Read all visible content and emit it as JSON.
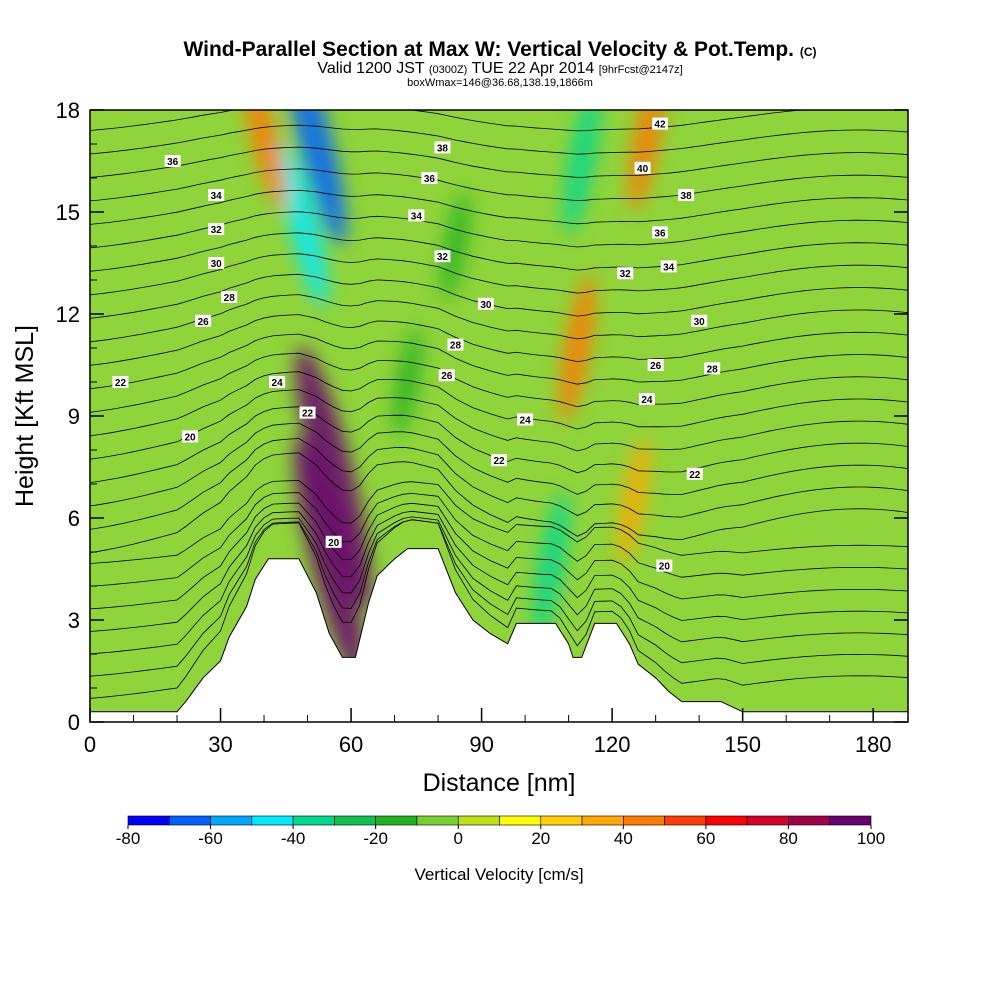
{
  "header": {
    "title": "Wind-Parallel Section at Max W: Vertical Velocity & Pot.Temp.",
    "title_mark": "(C)",
    "valid_prefix": "Valid 1200 JST",
    "valid_zulu": "(0300Z)",
    "valid_date": "TUE 22 Apr 2014",
    "forecast": "[9hrFcst@2147z]",
    "box_info": "boxWmax=146@36.68,138.19,1866m"
  },
  "chart_data": {
    "type": "heatmap",
    "xlabel": "Distance [nm]",
    "ylabel": "Height [Kft MSL]",
    "xlim": [
      0,
      188
    ],
    "ylim": [
      0,
      18
    ],
    "xticks": [
      "0",
      "30",
      "60",
      "90",
      "120",
      "150",
      "180"
    ],
    "yticks": [
      "0",
      "3",
      "6",
      "9",
      "12",
      "15",
      "18"
    ],
    "colorbar": {
      "label": "Vertical Velocity [cm/s]",
      "ticks": [
        "-80",
        "-60",
        "-40",
        "-20",
        "0",
        "20",
        "40",
        "60",
        "80",
        "100"
      ],
      "levels": [
        -80,
        -70,
        -60,
        -50,
        -40,
        -30,
        -20,
        -10,
        0,
        10,
        20,
        30,
        40,
        50,
        60,
        70,
        80,
        90,
        100
      ],
      "colors": [
        "#0000ff",
        "#0060ff",
        "#00a8ff",
        "#00eaff",
        "#00d890",
        "#10c050",
        "#20b020",
        "#78d030",
        "#c0e010",
        "#ffff00",
        "#ffd000",
        "#ffa800",
        "#ff7800",
        "#ff3c00",
        "#ff0000",
        "#d8002c",
        "#a00048",
        "#680070"
      ]
    },
    "terrain": [
      [
        0,
        0.3
      ],
      [
        20,
        0.3
      ],
      [
        22,
        0.6
      ],
      [
        26,
        1.3
      ],
      [
        30,
        1.8
      ],
      [
        32,
        2.5
      ],
      [
        36,
        3.4
      ],
      [
        38,
        4.2
      ],
      [
        41,
        4.8
      ],
      [
        48,
        4.8
      ],
      [
        52,
        3.8
      ],
      [
        55,
        2.6
      ],
      [
        58,
        1.9
      ],
      [
        61,
        1.9
      ],
      [
        64,
        3.5
      ],
      [
        66,
        4.3
      ],
      [
        70,
        4.8
      ],
      [
        73,
        5.1
      ],
      [
        80,
        5.1
      ],
      [
        84,
        3.8
      ],
      [
        88,
        3.0
      ],
      [
        92,
        2.6
      ],
      [
        96,
        2.3
      ],
      [
        98,
        2.9
      ],
      [
        107,
        2.9
      ],
      [
        110,
        2.3
      ],
      [
        111,
        1.9
      ],
      [
        113,
        1.9
      ],
      [
        116,
        2.9
      ],
      [
        121,
        2.9
      ],
      [
        124,
        2.3
      ],
      [
        126,
        1.7
      ],
      [
        130,
        1.3
      ],
      [
        133,
        0.9
      ],
      [
        136,
        0.6
      ],
      [
        145,
        0.6
      ],
      [
        150,
        0.3
      ],
      [
        188,
        0.3
      ]
    ],
    "w_features": [
      {
        "x": 56,
        "y": 7.2,
        "value": 100
      },
      {
        "x": 55,
        "y": 4.8,
        "value": 90
      },
      {
        "x": 52,
        "y": 17.0,
        "value": -70
      },
      {
        "x": 49,
        "y": 14.6,
        "value": -50
      },
      {
        "x": 106,
        "y": 4.6,
        "value": -40
      },
      {
        "x": 113,
        "y": 16.5,
        "value": -40
      },
      {
        "x": 112,
        "y": 11.0,
        "value": 40
      },
      {
        "x": 40,
        "y": 17.2,
        "value": 40
      },
      {
        "x": 128,
        "y": 17.2,
        "value": 40
      },
      {
        "x": 125,
        "y": 6.5,
        "value": 30
      },
      {
        "x": 73,
        "y": 10.0,
        "value": -20
      },
      {
        "x": 84,
        "y": 14.0,
        "value": -20
      }
    ],
    "theta_labels": [
      {
        "text": "36",
        "x": 19,
        "y": 16.5
      },
      {
        "text": "34",
        "x": 29,
        "y": 15.5
      },
      {
        "text": "32",
        "x": 29,
        "y": 14.5
      },
      {
        "text": "30",
        "x": 29,
        "y": 13.5
      },
      {
        "text": "28",
        "x": 32,
        "y": 12.5
      },
      {
        "text": "26",
        "x": 26,
        "y": 11.8
      },
      {
        "text": "22",
        "x": 7,
        "y": 10.0
      },
      {
        "text": "24",
        "x": 43,
        "y": 10.0
      },
      {
        "text": "22",
        "x": 50,
        "y": 9.1
      },
      {
        "text": "20",
        "x": 23,
        "y": 8.4
      },
      {
        "text": "20",
        "x": 56,
        "y": 5.3
      },
      {
        "text": "38",
        "x": 81,
        "y": 16.9
      },
      {
        "text": "36",
        "x": 78,
        "y": 16.0
      },
      {
        "text": "34",
        "x": 75,
        "y": 14.9
      },
      {
        "text": "32",
        "x": 81,
        "y": 13.7
      },
      {
        "text": "30",
        "x": 91,
        "y": 12.3
      },
      {
        "text": "28",
        "x": 84,
        "y": 11.1
      },
      {
        "text": "26",
        "x": 82,
        "y": 10.2
      },
      {
        "text": "24",
        "x": 100,
        "y": 8.9
      },
      {
        "text": "22",
        "x": 94,
        "y": 7.7
      },
      {
        "text": "42",
        "x": 131,
        "y": 17.6
      },
      {
        "text": "40",
        "x": 127,
        "y": 16.3
      },
      {
        "text": "38",
        "x": 137,
        "y": 15.5
      },
      {
        "text": "36",
        "x": 131,
        "y": 14.4
      },
      {
        "text": "34",
        "x": 133,
        "y": 13.4
      },
      {
        "text": "32",
        "x": 123,
        "y": 13.2
      },
      {
        "text": "30",
        "x": 140,
        "y": 11.8
      },
      {
        "text": "28",
        "x": 143,
        "y": 10.4
      },
      {
        "text": "26",
        "x": 130,
        "y": 10.5
      },
      {
        "text": "24",
        "x": 128,
        "y": 9.5
      },
      {
        "text": "22",
        "x": 139,
        "y": 7.3
      },
      {
        "text": "20",
        "x": 132,
        "y": 4.6
      }
    ]
  }
}
